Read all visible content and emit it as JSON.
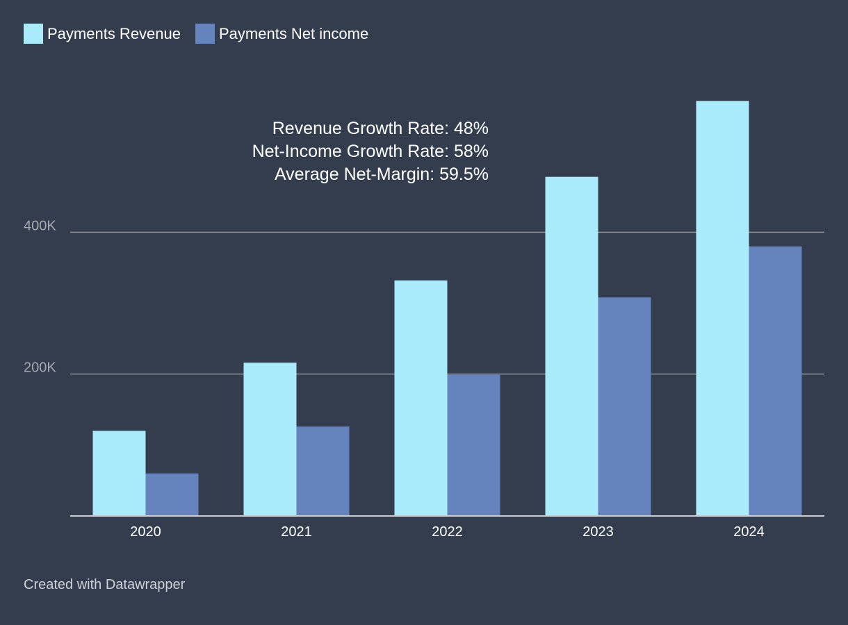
{
  "legend": [
    {
      "label": "Payments Revenue",
      "color": "#aaebfb"
    },
    {
      "label": "Payments Net income",
      "color": "#6583bd"
    }
  ],
  "annotation": [
    "Revenue Growth Rate: 48%",
    "Net-Income Growth Rate: 58%",
    "Average Net-Margin: 59.5%"
  ],
  "footer": "Created with Datawrapper",
  "colors": {
    "background": "#333d4e",
    "gridline": "#8f949c",
    "axis": "#c9ccd1",
    "tick_label": "#a6aab1",
    "category_label": "#ffffff"
  },
  "chart_data": {
    "type": "bar",
    "categories": [
      "2020",
      "2021",
      "2022",
      "2023",
      "2024"
    ],
    "series": [
      {
        "name": "Payments Revenue",
        "values": [
          120000,
          216000,
          332000,
          478000,
          585000
        ]
      },
      {
        "name": "Payments Net income",
        "values": [
          60000,
          126000,
          199000,
          308000,
          380000
        ]
      }
    ],
    "ylim": [
      0,
      600000
    ],
    "yticks": [
      {
        "value": 200000,
        "label": "200K"
      },
      {
        "value": 400000,
        "label": "400K"
      }
    ],
    "grid": true,
    "legend_position": "top-left",
    "title": "",
    "xlabel": "",
    "ylabel": ""
  }
}
